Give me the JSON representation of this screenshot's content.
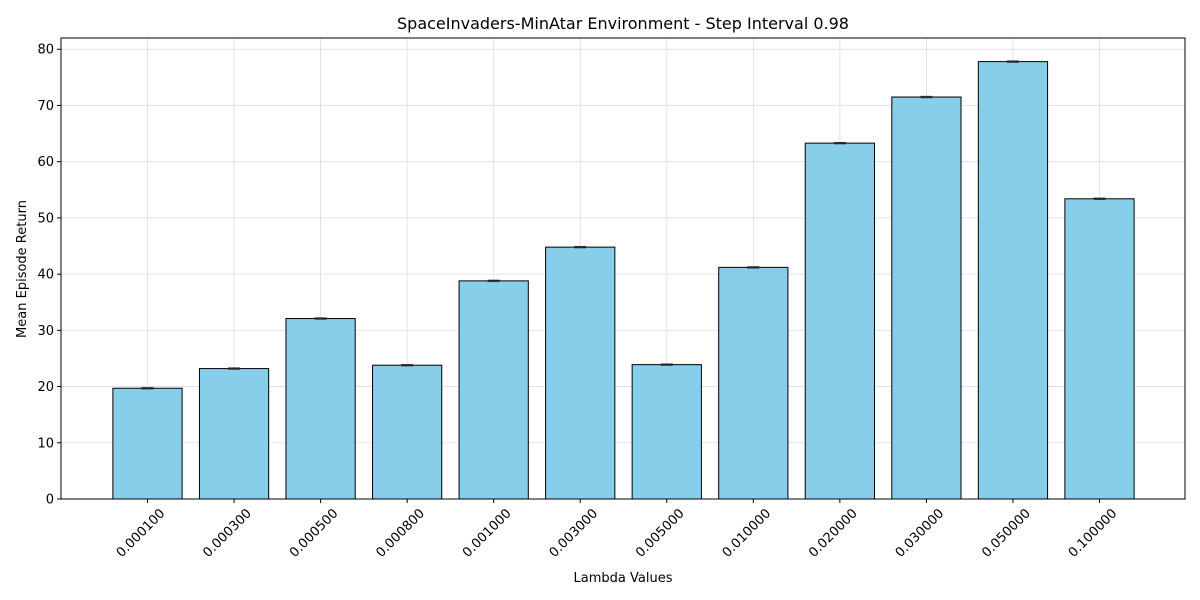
{
  "chart_data": {
    "type": "bar",
    "title": "SpaceInvaders-MinAtar Environment - Step Interval 0.98",
    "xlabel": "Lambda Values",
    "ylabel": "Mean Episode Return",
    "categories": [
      "0.000100",
      "0.000300",
      "0.000500",
      "0.000800",
      "0.001000",
      "0.003000",
      "0.005000",
      "0.010000",
      "0.020000",
      "0.030000",
      "0.050000",
      "0.100000"
    ],
    "values": [
      19.7,
      23.2,
      32.1,
      23.8,
      38.8,
      44.8,
      23.9,
      41.2,
      63.3,
      71.5,
      77.8,
      53.4
    ],
    "error": [
      0.12,
      0.12,
      0.12,
      0.12,
      0.12,
      0.12,
      0.12,
      0.12,
      0.12,
      0.12,
      0.12,
      0.12
    ],
    "ylim": [
      0,
      82
    ],
    "yticks": [
      0,
      10,
      20,
      30,
      40,
      50,
      60,
      70,
      80
    ],
    "grid": true,
    "bar_color": "#87CEEB",
    "edge_color": "#000000"
  }
}
